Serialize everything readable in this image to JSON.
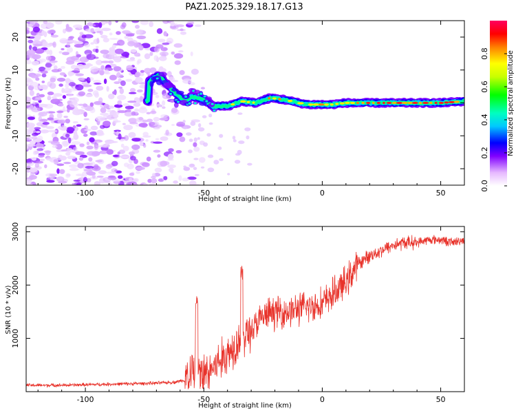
{
  "chart_data": [
    {
      "type": "heatmap",
      "title": "PAZ1.2025.329.18.17.G13",
      "xlabel": "Height of straight line (km)",
      "ylabel": "Frequency (Hz)",
      "xlim": [
        -125,
        60
      ],
      "ylim": [
        -25,
        25
      ],
      "xticks": [
        -100,
        -50,
        0,
        50
      ],
      "yticks": [
        20,
        10,
        0,
        -10,
        -20
      ],
      "colorbar": {
        "label": "Normalized spectral amplitude",
        "range": [
          0,
          1
        ],
        "ticks": [
          0.0,
          0.2,
          0.4,
          0.6,
          0.8
        ],
        "tick_labels": [
          "0.0",
          "0.2",
          "0.4",
          "0.6",
          "0.8"
        ]
      },
      "signal_track": {
        "description_points_x": [
          -73,
          -69,
          -66,
          -62,
          -58,
          -55,
          -50,
          -46,
          -40,
          -34,
          -28,
          -22,
          -16,
          -10,
          -6,
          -2,
          4,
          10,
          20,
          30,
          40,
          50,
          60
        ],
        "description_points_freq": [
          6.5,
          8.5,
          6,
          3,
          0.5,
          2,
          1,
          -1,
          -1,
          0.5,
          0,
          1.5,
          1,
          0,
          -0.5,
          -0.5,
          -0.5,
          0,
          0,
          0,
          0,
          0,
          0.5
        ]
      },
      "noise_region_x": [
        -125,
        -58
      ]
    },
    {
      "type": "line",
      "xlabel": "Height of straight line (km)",
      "ylabel": "SNR (10 * v/v)",
      "xlim": [
        -125,
        60
      ],
      "ylim": [
        0,
        3100
      ],
      "xticks": [
        -100,
        -50,
        0,
        50
      ],
      "yticks": [
        1000,
        2000,
        3000
      ],
      "series": [
        {
          "name": "SNR",
          "color": "#e8322a",
          "x": [
            -125,
            -110,
            -100,
            -90,
            -80,
            -70,
            -62,
            -58,
            -55,
            -50,
            -45,
            -40,
            -35,
            -30,
            -25,
            -20,
            -15,
            -10,
            -5,
            0,
            5,
            10,
            15,
            20,
            25,
            30,
            35,
            40,
            45,
            50,
            55,
            60
          ],
          "values": [
            120,
            120,
            130,
            140,
            150,
            160,
            180,
            220,
            380,
            300,
            500,
            700,
            1000,
            1150,
            1400,
            1500,
            1500,
            1550,
            1600,
            1650,
            1850,
            2050,
            2400,
            2550,
            2650,
            2750,
            2800,
            2800,
            2850,
            2850,
            2800,
            2850
          ]
        }
      ],
      "spikes": [
        {
          "x": -53,
          "value": 1800
        },
        {
          "x": -34,
          "value": 2420
        }
      ]
    }
  ]
}
